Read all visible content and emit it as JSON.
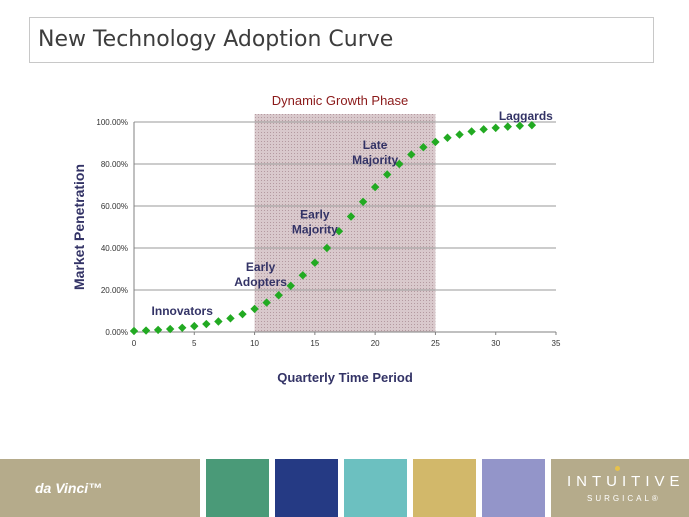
{
  "title": "New Technology Adoption Curve",
  "colors": {
    "marker": "#22aa22",
    "shade": "#d9c9cc",
    "axis_text": "#333366",
    "phase_text": "#8b1a1a",
    "footer_tan": "#b5ab8b",
    "swatches": [
      "#4a9a78",
      "#253a84",
      "#6cc0c0",
      "#d2b86a",
      "#9395c9"
    ]
  },
  "chart_data": {
    "type": "scatter",
    "title": "",
    "xlabel": "Quarterly Time Period",
    "ylabel": "Market Penetration",
    "xlim": [
      0,
      35
    ],
    "ylim": [
      0,
      100
    ],
    "x_ticks": [
      "0",
      "5",
      "10",
      "15",
      "20",
      "25",
      "30",
      "35"
    ],
    "y_ticks": [
      "0.00%",
      "20.00%",
      "40.00%",
      "60.00%",
      "80.00%",
      "100.00%"
    ],
    "grid": "horizontal",
    "shaded_region": {
      "x_start": 10,
      "x_end": 25,
      "label": "Dynamic Growth Phase"
    },
    "series": [
      {
        "marker": "diamond",
        "x": [
          0,
          1,
          2,
          3,
          4,
          5,
          6,
          7,
          8,
          9,
          10,
          11,
          12,
          13,
          14,
          15,
          16,
          17,
          18,
          19,
          20,
          21,
          22,
          23,
          24,
          25,
          26,
          27,
          28,
          29,
          30,
          31,
          32,
          33
        ],
        "y": [
          0.5,
          0.7,
          1.0,
          1.4,
          2.0,
          2.8,
          3.8,
          5.0,
          6.5,
          8.5,
          11,
          14,
          17.5,
          22,
          27,
          33,
          40,
          48,
          55,
          62,
          69,
          75,
          80,
          84.5,
          88,
          90.5,
          92.5,
          94,
          95.5,
          96.5,
          97.2,
          97.8,
          98.2,
          98.5
        ]
      }
    ],
    "annotations": [
      {
        "lines": [
          "Innovators"
        ],
        "x": 4,
        "y": 8
      },
      {
        "lines": [
          "Early",
          "Adopters"
        ],
        "x": 10.5,
        "y": 22
      },
      {
        "lines": [
          "Early",
          "Majority"
        ],
        "x": 15,
        "y": 47
      },
      {
        "lines": [
          "Late",
          "Majority"
        ],
        "x": 20,
        "y": 80
      },
      {
        "lines": [
          "Laggards"
        ],
        "x": 32.5,
        "y": 101
      }
    ]
  },
  "footer": {
    "brand": "da Vinci™",
    "logo_main": "INTUITIVE",
    "logo_sub": "SURGICAL®"
  }
}
